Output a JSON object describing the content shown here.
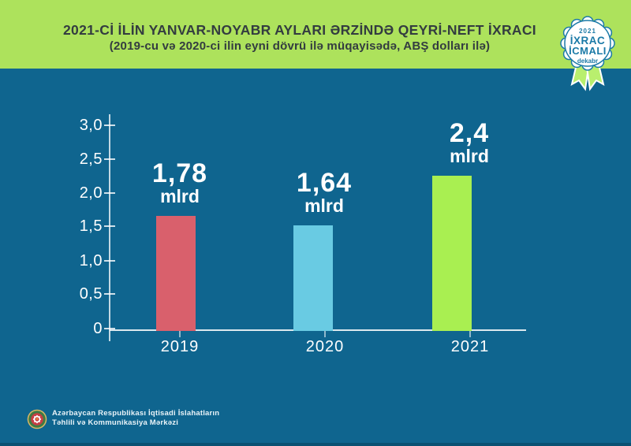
{
  "header": {
    "title_line1": "2021-Cİ İLİN YANVAR-NOYABR AYLARI ƏRZİNDƏ QEYRİ-NEFT İXRACI",
    "title_line2": "(2019-cu və 2020-ci ilin eyni dövrü ilə müqayisədə, ABŞ dolları ilə)"
  },
  "badge": {
    "year": "2021",
    "title_line1": "İXRAC",
    "title_line2": "İCMALI",
    "month": "dekabr"
  },
  "chart_data": {
    "type": "bar",
    "title": "2021-Cİ İLİN YANVAR-NOYABR AYLARI ƏRZİNDƏ QEYRİ-NEFT İXRACI",
    "subtitle": "(2019-cu və 2020-ci ilin eyni dövrü ilə müqayisədə, ABŞ dolları ilə)",
    "categories": [
      "2019",
      "2020",
      "2021"
    ],
    "values": [
      1.78,
      1.64,
      2.4
    ],
    "bar_labels": [
      {
        "value": "1,78",
        "unit": "mlrd"
      },
      {
        "value": "1,64",
        "unit": "mlrd"
      },
      {
        "value": "2,4",
        "unit": "mlrd"
      }
    ],
    "bar_colors": [
      "#d9606c",
      "#69cbe3",
      "#a9ef51"
    ],
    "y_ticks": [
      "3,0",
      "2,5",
      "2,0",
      "1,5",
      "1,0",
      "0,5",
      "0"
    ],
    "ylim": [
      0,
      3.0
    ],
    "grid": false,
    "legend": false
  },
  "footer": {
    "org_line1": "Azərbaycan Respublikası İqtisadi İslahatların",
    "org_line2": "Təhlili və Kommunikasiya Mərkəzi"
  },
  "colors": {
    "background": "#0f658f",
    "banner": "#ade25c",
    "badge_teal": "#1b7aa7",
    "ribbon_green": "#b9ef6e",
    "bar_2019": "#d9606c",
    "bar_2020": "#69cbe3",
    "bar_2021": "#a9ef51"
  }
}
